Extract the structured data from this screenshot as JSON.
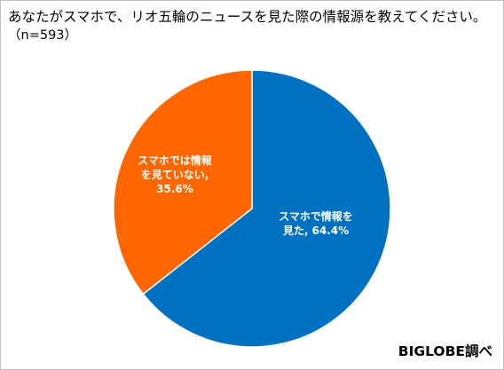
{
  "chart_data": {
    "type": "pie",
    "title": "あなたがスマホで、リオ五輪のニュースを見た際の情報源を教えてください。",
    "subtitle": "（n=593）",
    "slices": [
      {
        "label_lines": [
          "スマホで情報を",
          "見た, 64.4%"
        ],
        "label": "スマホで情報を見た",
        "value": 64.4,
        "color": "#0070c0"
      },
      {
        "label_lines": [
          "スマホでは情報",
          "を見ていない,",
          "35.6%"
        ],
        "label": "スマホでは情報を見ていない",
        "value": 35.6,
        "color": "#ff6600"
      }
    ],
    "legend": "none"
  },
  "source_note": "BIGLOBE調べ",
  "colors": {
    "slice_border": "#ffffff",
    "frame_border": "#bfbfbf"
  }
}
